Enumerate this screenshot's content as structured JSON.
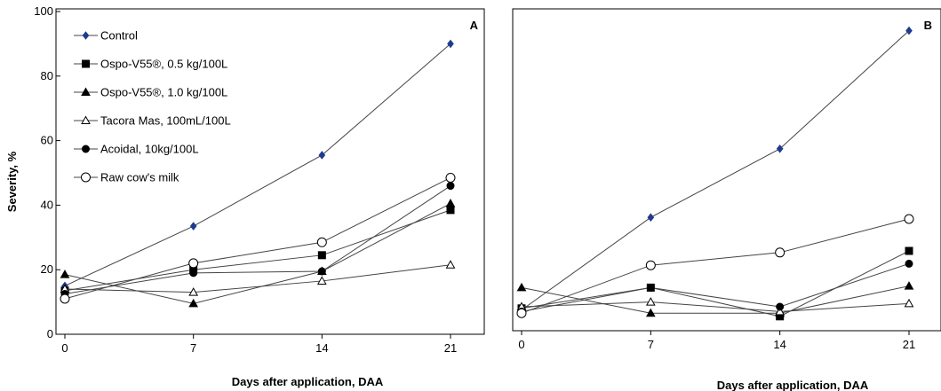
{
  "chart_data": [
    {
      "type": "line",
      "panel": "A",
      "x": [
        0,
        7,
        14,
        21
      ],
      "xlabel": "Days after application, DAA",
      "ylabel": "Severity, %",
      "xlim": [
        0,
        21
      ],
      "ylim": [
        0,
        100
      ],
      "yticks": [
        0,
        20,
        40,
        60,
        80,
        100
      ],
      "xticks": [
        0,
        7,
        14,
        21
      ],
      "grid": false,
      "legend": "top-left",
      "series": [
        {
          "name": "Control",
          "marker": "diamond",
          "color": "#1f3a8f",
          "values": [
            15,
            33.5,
            55.5,
            90
          ]
        },
        {
          "name": "Ospo-V55®, 0.5 kg/100L",
          "marker": "square",
          "color": "#000000",
          "values": [
            13.5,
            20,
            24.5,
            38.5
          ]
        },
        {
          "name": "Ospo-V55®, 1.0 kg/100L",
          "marker": "triangle",
          "color": "#000000",
          "values": [
            18.5,
            9.5,
            19.5,
            40.5
          ]
        },
        {
          "name": "Tacora Mas, 100mL/100L",
          "marker": "triangle-open",
          "color": "#000000",
          "values": [
            14,
            13,
            16.5,
            21.5
          ]
        },
        {
          "name": "Acoidal, 10kg/100L",
          "marker": "circle",
          "color": "#000000",
          "values": [
            12.5,
            19,
            19.5,
            46
          ]
        },
        {
          "name": "Raw cow's milk",
          "marker": "circle-open",
          "color": "#000000",
          "values": [
            11,
            22,
            28.5,
            48.5
          ]
        }
      ]
    },
    {
      "type": "line",
      "panel": "B",
      "x": [
        0,
        7,
        14,
        21
      ],
      "xlabel": "Days after application, DAA",
      "ylabel": "",
      "xlim": [
        0,
        21
      ],
      "ylim": [
        0,
        100
      ],
      "xticks": [
        0,
        7,
        14,
        21
      ],
      "grid": false,
      "legend": "none",
      "series": [
        {
          "name": "Control",
          "marker": "diamond",
          "color": "#1f3a8f",
          "values": [
            6.5,
            35.5,
            57,
            94
          ]
        },
        {
          "name": "Ospo-V55®, 0.5 kg/100L",
          "marker": "square",
          "color": "#000000",
          "values": [
            7,
            13.5,
            4.5,
            25
          ]
        },
        {
          "name": "Ospo-V55®, 1.0 kg/100L",
          "marker": "triangle",
          "color": "#000000",
          "values": [
            13.5,
            5.5,
            5.5,
            14
          ]
        },
        {
          "name": "Tacora Mas, 100mL/100L",
          "marker": "triangle-open",
          "color": "#000000",
          "values": [
            7.5,
            9,
            6,
            8.5
          ]
        },
        {
          "name": "Acoidal, 10kg/100L",
          "marker": "circle",
          "color": "#000000",
          "values": [
            6,
            13.5,
            7.5,
            21
          ]
        },
        {
          "name": "Raw cow's milk",
          "marker": "circle-open",
          "color": "#000000",
          "values": [
            5.5,
            20.5,
            24.5,
            35
          ]
        }
      ]
    }
  ]
}
